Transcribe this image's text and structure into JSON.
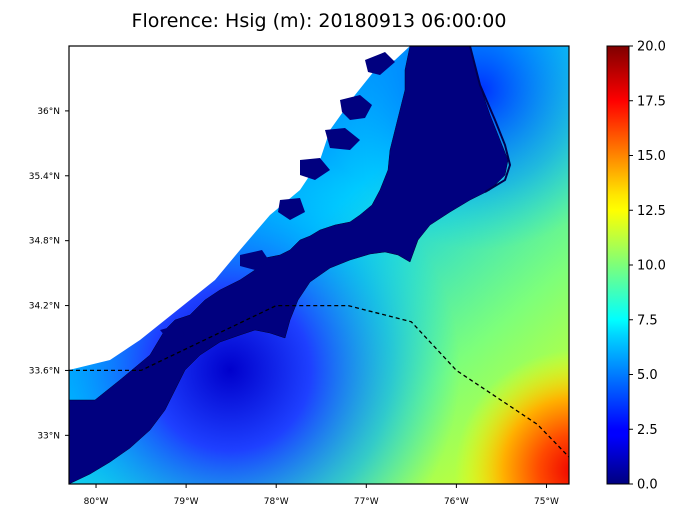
{
  "title": "Florence: Hsig (m): 20180913 06:00:00",
  "map": {
    "lat_labels": [
      "36°N",
      "35.4°N",
      "34.8°N",
      "34.2°N",
      "33.6°N",
      "33°N"
    ],
    "lat_values": [
      36.0,
      35.4,
      34.8,
      34.2,
      33.6,
      33.0
    ],
    "lon_labels": [
      "80°W",
      "79°W",
      "78°W",
      "77°W",
      "76°W",
      "75°W"
    ],
    "lon_values": [
      -80,
      -79,
      -78,
      -77,
      -76,
      -75
    ],
    "lat_range": [
      32.55,
      36.6
    ],
    "lon_range": [
      -80.3,
      -74.75
    ],
    "track_line": "dashed",
    "track": [
      {
        "lon": -80.3,
        "lat": 33.6
      },
      {
        "lon": -79.5,
        "lat": 33.6
      },
      {
        "lon": -78.0,
        "lat": 34.2
      },
      {
        "lon": -77.2,
        "lat": 34.2
      },
      {
        "lon": -76.5,
        "lat": 34.05
      },
      {
        "lon": -76.0,
        "lat": 33.6
      },
      {
        "lon": -75.1,
        "lat": 33.1
      },
      {
        "lon": -74.75,
        "lat": 32.8
      }
    ]
  },
  "colorbar": {
    "colormap": "jet",
    "min": 0.0,
    "max": 20.0,
    "tick_values": [
      0.0,
      2.5,
      5.0,
      7.5,
      10.0,
      12.5,
      15.0,
      17.5,
      20.0
    ],
    "tick_labels": [
      "0.0",
      "2.5",
      "5.0",
      "7.5",
      "10.0",
      "12.5",
      "15.0",
      "17.5",
      "20.0"
    ]
  },
  "colors": {
    "land": "#00007f",
    "coast_shelf": "#1e3cff",
    "offshore": "#1ecfd0",
    "peak": "#ff2a00"
  }
}
